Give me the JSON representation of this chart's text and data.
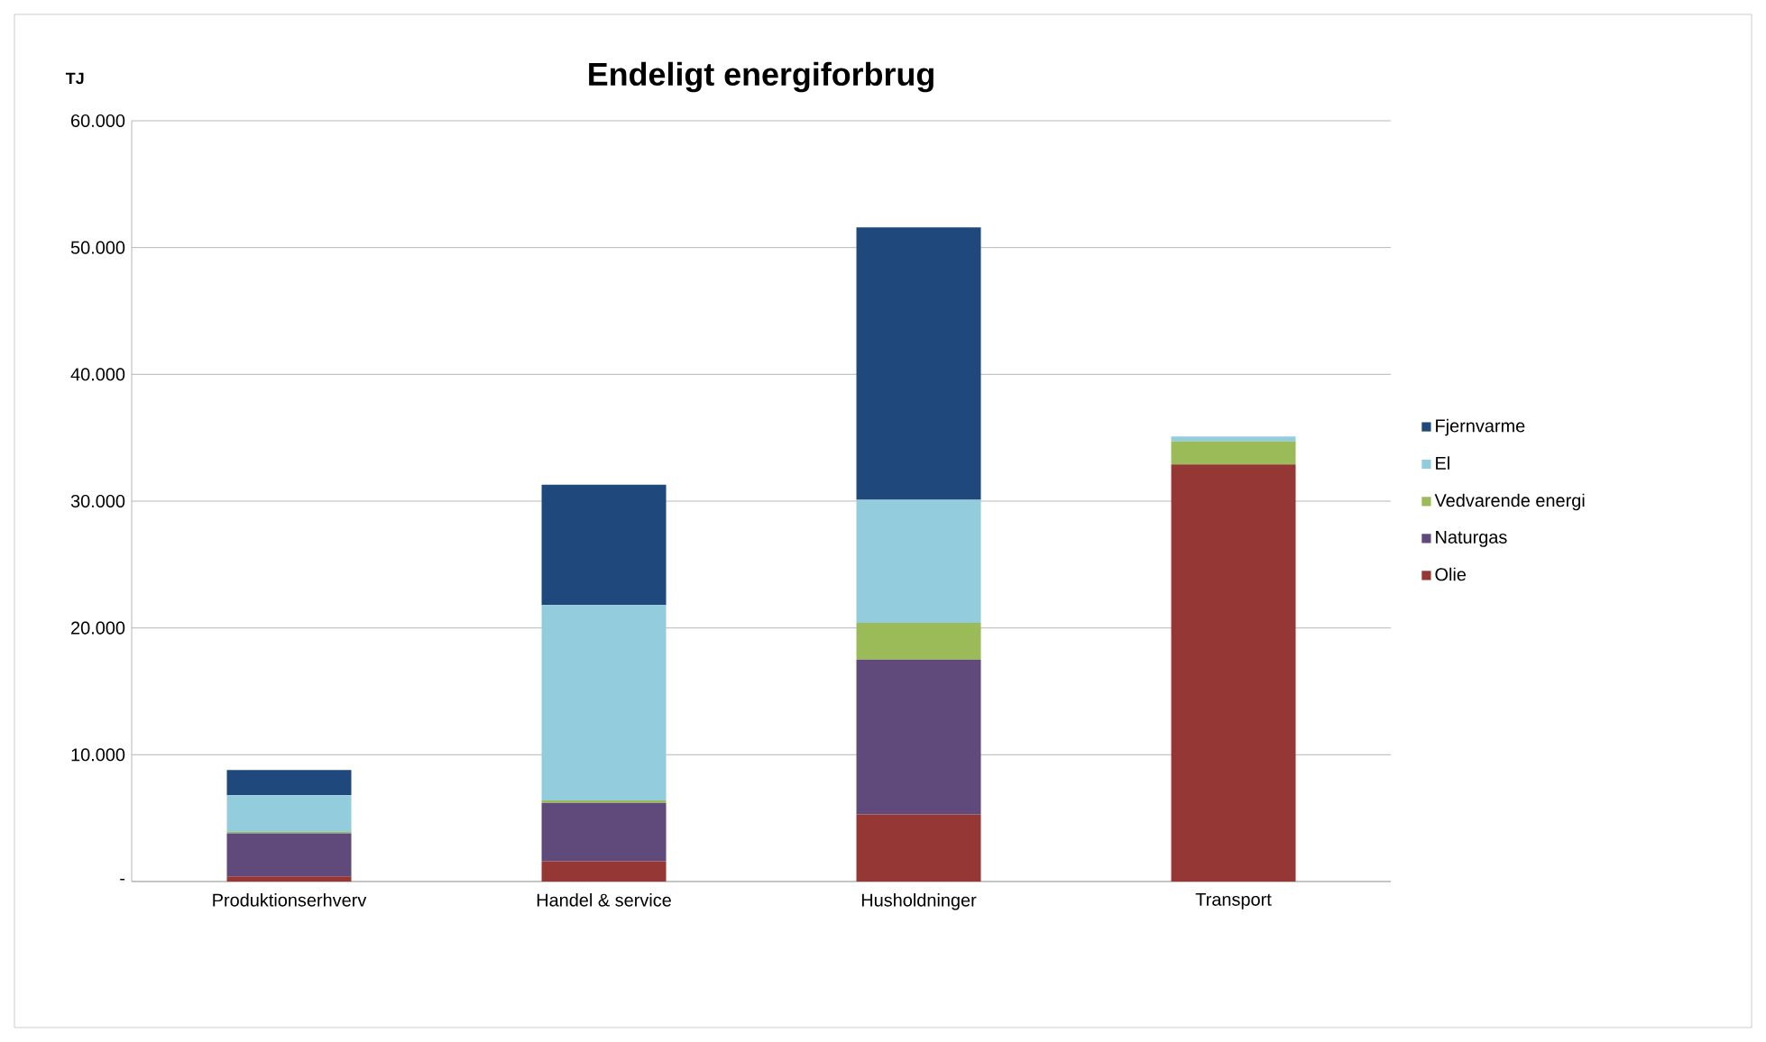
{
  "chart_data": {
    "type": "bar",
    "title": "Endeligt energiforbrug",
    "ylabel": "TJ",
    "categories": [
      "Produktionserhverv",
      "Handel & service",
      "Husholdninger",
      "Transport"
    ],
    "stacked": true,
    "series": [
      {
        "name": "Olie",
        "color": "#953735",
        "values": [
          400,
          1600,
          5300,
          32900
        ]
      },
      {
        "name": "Naturgas",
        "color": "#604a7b",
        "values": [
          3400,
          4600,
          12200,
          0
        ]
      },
      {
        "name": "Vedvarende energi",
        "color": "#9bbb59",
        "values": [
          100,
          200,
          2900,
          1800
        ]
      },
      {
        "name": "El",
        "color": "#93cddd",
        "values": [
          2900,
          15400,
          9700,
          400
        ]
      },
      {
        "name": "Fjernvarme",
        "color": "#1f497d",
        "values": [
          2000,
          9500,
          21500,
          0
        ]
      }
    ],
    "ylim": [
      0,
      60000
    ],
    "yticks": [
      {
        "value": 0,
        "label": "-"
      },
      {
        "value": 10000,
        "label": "10.000"
      },
      {
        "value": 20000,
        "label": "20.000"
      },
      {
        "value": 30000,
        "label": "30.000"
      },
      {
        "value": 40000,
        "label": "40.000"
      },
      {
        "value": 50000,
        "label": "50.000"
      },
      {
        "value": 60000,
        "label": "60.000"
      }
    ],
    "grid": "y",
    "legend": "right"
  }
}
